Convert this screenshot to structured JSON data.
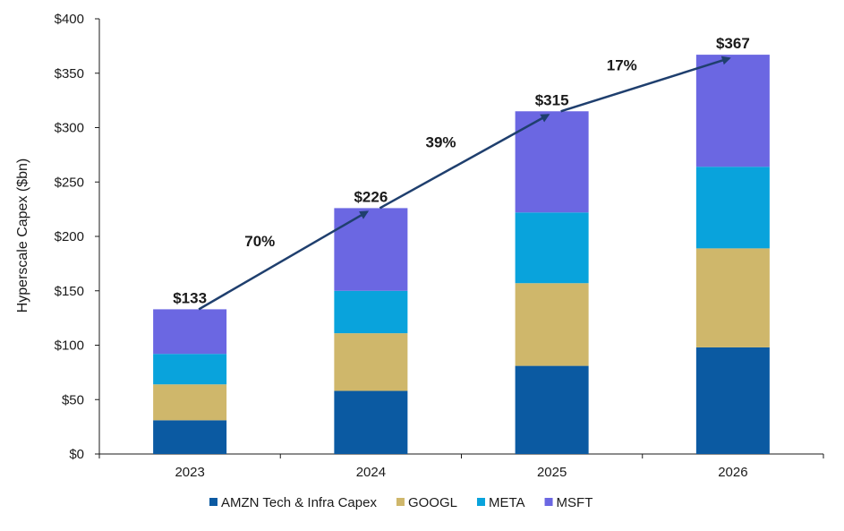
{
  "chart_data": {
    "type": "bar",
    "stacked": true,
    "categories": [
      "2023",
      "2024",
      "2025",
      "2026"
    ],
    "series": [
      {
        "name": "AMZN Tech & Infra Capex",
        "color": "#0b5aa2",
        "values": [
          31,
          58,
          81,
          98
        ]
      },
      {
        "name": "GOOGL",
        "color": "#cfb76b",
        "values": [
          33,
          53,
          76,
          91
        ]
      },
      {
        "name": "META",
        "color": "#09a3dc",
        "values": [
          28,
          39,
          65,
          75
        ]
      },
      {
        "name": "MSFT",
        "color": "#6b67e2",
        "values": [
          41,
          76,
          93,
          103
        ]
      }
    ],
    "totals": [
      "$133",
      "$226",
      "$315",
      "$367"
    ],
    "growth_labels": [
      "70%",
      "39%",
      "17%"
    ],
    "ylabel": "Hyperscale Capex ($bn)",
    "xlabel": "",
    "ylim": [
      0,
      400
    ],
    "yticks": [
      0,
      50,
      100,
      150,
      200,
      250,
      300,
      350,
      400
    ],
    "ytick_labels": [
      "$0",
      "$50",
      "$100",
      "$150",
      "$200",
      "$250",
      "$300",
      "$350",
      "$400"
    ],
    "grid": false,
    "legend_position": "bottom",
    "arrow_color": "#1f3f6e"
  }
}
